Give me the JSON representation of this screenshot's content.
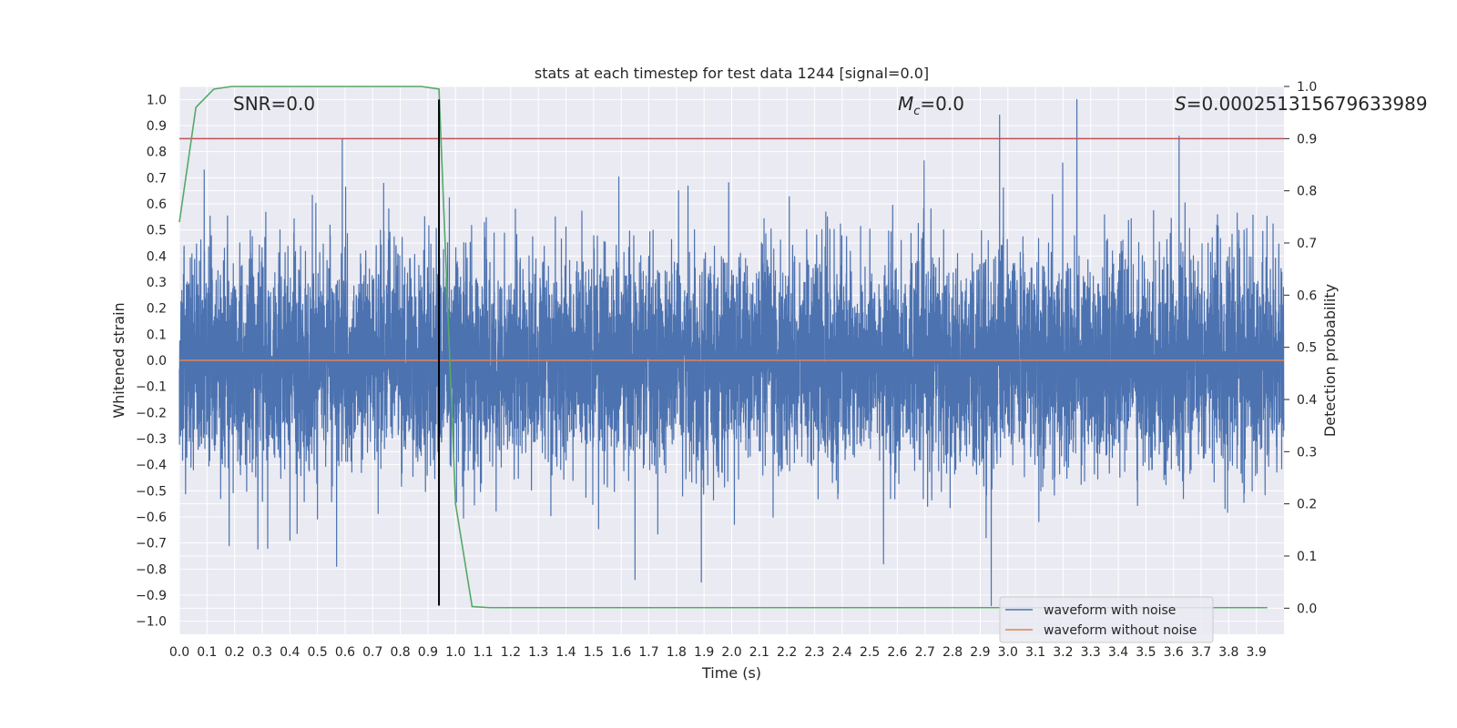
{
  "chart_data": {
    "type": "line",
    "title": "stats at each timestep for test data 1244 [signal=0.0]",
    "xlabel": "Time (s)",
    "ylabel": "Whitened strain",
    "y2label": "Detection probability",
    "xlim": [
      0,
      4.0
    ],
    "ylim": [
      -1.05,
      1.05
    ],
    "y2lim": [
      -0.05,
      1.0
    ],
    "xticks": [
      "0.0",
      "0.1",
      "0.2",
      "0.3",
      "0.4",
      "0.5",
      "0.6",
      "0.7",
      "0.8",
      "0.9",
      "1.0",
      "1.1",
      "1.2",
      "1.3",
      "1.4",
      "1.5",
      "1.6",
      "1.7",
      "1.8",
      "1.9",
      "2.0",
      "2.1",
      "2.2",
      "2.3",
      "2.4",
      "2.5",
      "2.6",
      "2.7",
      "2.8",
      "2.9",
      "3.0",
      "3.1",
      "3.2",
      "3.3",
      "3.4",
      "3.5",
      "3.6",
      "3.7",
      "3.8",
      "3.9"
    ],
    "yticks": [
      "1.0",
      "0.9",
      "0.8",
      "0.7",
      "0.6",
      "0.5",
      "0.4",
      "0.3",
      "0.2",
      "0.1",
      "0.0",
      "−0.1",
      "−0.2",
      "−0.3",
      "−0.4",
      "−0.5",
      "−0.6",
      "−0.7",
      "−0.8",
      "−0.9",
      "−1.0"
    ],
    "y2ticks": [
      "1.0",
      "0.9",
      "0.8",
      "0.7",
      "0.6",
      "0.5",
      "0.4",
      "0.3",
      "0.2",
      "0.1",
      "0.0"
    ],
    "grid": true,
    "legend_position": "lower-right",
    "series": [
      {
        "name": "waveform with noise",
        "color": "#4c72b0",
        "axis": "left",
        "sample_rate": 2048,
        "envelope_std": 0.2,
        "notable_peaks": [
          {
            "x": 0.59,
            "y": 0.85
          },
          {
            "x": 0.09,
            "y": 0.73
          },
          {
            "x": 2.97,
            "y": 0.94
          },
          {
            "x": 3.25,
            "y": 1.0
          },
          {
            "x": 3.62,
            "y": 0.86
          },
          {
            "x": 0.18,
            "y": -0.71
          },
          {
            "x": 0.32,
            "y": -0.72
          },
          {
            "x": 1.65,
            "y": -0.84
          },
          {
            "x": 1.89,
            "y": -0.85
          },
          {
            "x": 2.94,
            "y": -0.94
          },
          {
            "x": 2.55,
            "y": -0.78
          },
          {
            "x": 0.94,
            "y": -0.76
          }
        ]
      },
      {
        "name": "waveform without noise",
        "color": "#dd8452",
        "axis": "left",
        "x": [
          0.0,
          4.0
        ],
        "y": [
          0.0,
          0.0
        ]
      },
      {
        "name": "",
        "color": "#55a868",
        "axis": "right",
        "x": [
          0.0,
          0.06,
          0.125,
          0.19,
          0.25,
          0.5,
          0.875,
          0.94,
          1.0,
          1.06,
          1.125,
          1.5,
          2.0,
          2.5,
          3.0,
          3.5,
          3.94
        ],
        "y": [
          0.74,
          0.96,
          0.995,
          1.0,
          1.0,
          1.0,
          1.0,
          0.995,
          0.2,
          0.003,
          0.001,
          0.001,
          0.001,
          0.001,
          0.001,
          0.001,
          0.001
        ]
      }
    ],
    "threshold_line": {
      "axis": "right",
      "y": 0.9,
      "color": "#c44e52"
    },
    "vertical_marker": {
      "x": 0.94,
      "y_from": -0.94,
      "y_to": 1.0,
      "color": "#000000"
    },
    "annotations": {
      "snr": "SNR=0.0",
      "mc_symbol": "M",
      "mc_sub": "c",
      "mc_value": "=0.0",
      "s_symbol": "S",
      "s_value": "=0.000251315679633989"
    }
  }
}
